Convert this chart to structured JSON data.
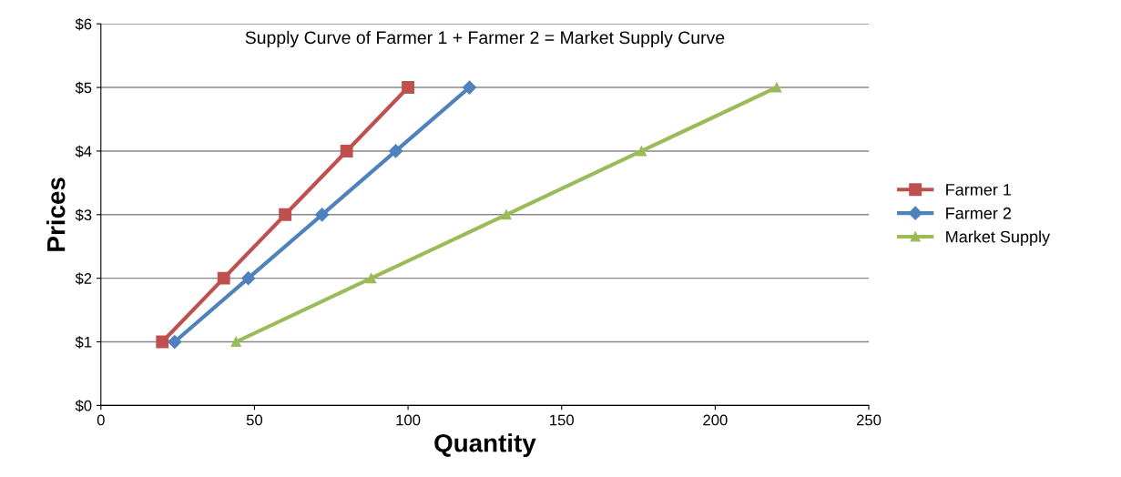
{
  "chart_data": {
    "type": "line",
    "title": "Supply Curve of Farmer 1 + Farmer 2 = Market Supply Curve",
    "xlabel": "Quantity",
    "ylabel": "Prices",
    "series": [
      {
        "name": "Farmer 1",
        "color": "#c0504d",
        "marker": "square",
        "x": [
          20,
          40,
          60,
          80,
          100
        ],
        "values": [
          1,
          2,
          3,
          4,
          5
        ]
      },
      {
        "name": "Farmer 2",
        "color": "#4f81bd",
        "marker": "diamond",
        "x": [
          24,
          48,
          72,
          96,
          120
        ],
        "values": [
          1,
          2,
          3,
          4,
          5
        ]
      },
      {
        "name": "Market Supply",
        "color": "#9bbb59",
        "marker": "triangle",
        "x": [
          44,
          88,
          132,
          176,
          220
        ],
        "values": [
          1,
          2,
          3,
          4,
          5
        ]
      }
    ],
    "xlim": [
      0,
      250
    ],
    "xticks": [
      0,
      50,
      100,
      150,
      200,
      250
    ],
    "ylim": [
      0,
      6
    ],
    "yticks": [
      {
        "value": 0,
        "label": "$0"
      },
      {
        "value": 1,
        "label": "$1"
      },
      {
        "value": 2,
        "label": "$2"
      },
      {
        "value": 3,
        "label": "$3"
      },
      {
        "value": 4,
        "label": "$4"
      },
      {
        "value": 5,
        "label": "$5"
      },
      {
        "value": 6,
        "label": "$6"
      }
    ],
    "grid": "y",
    "legend": "right",
    "line_style": "solid"
  }
}
